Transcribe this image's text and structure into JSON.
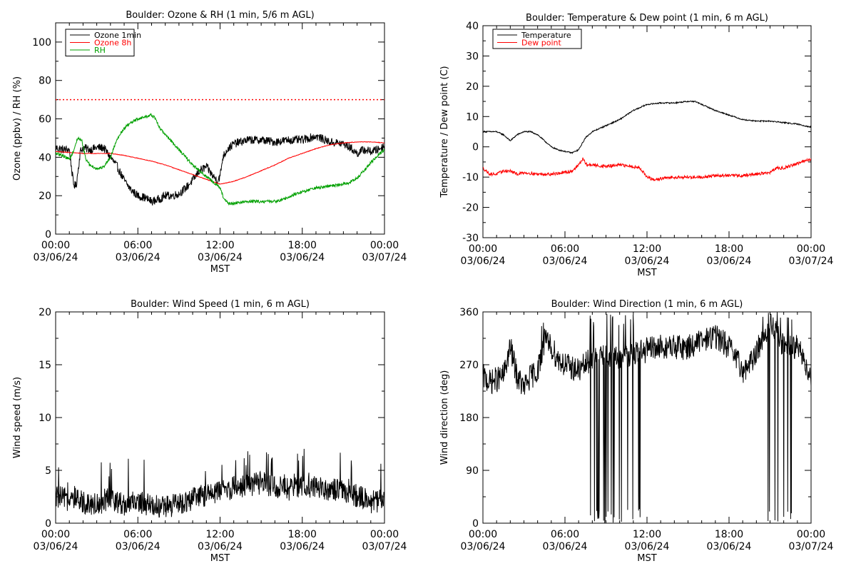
{
  "chart_data": [
    {
      "type": "line",
      "title": "Boulder: Ozone & RH (1 min, 5/6 m AGL)",
      "ylabel": "Ozone (ppbv) / RH (%)",
      "xlabel": "MST",
      "xlim": [
        0,
        24
      ],
      "ylim": [
        0,
        110
      ],
      "yticks": [
        0,
        20,
        40,
        60,
        80,
        100
      ],
      "xticks": [
        {
          "time": "00:00",
          "date": "03/06/24"
        },
        {
          "time": "06:00",
          "date": "03/06/24"
        },
        {
          "time": "12:00",
          "date": "03/06/24"
        },
        {
          "time": "18:00",
          "date": "03/06/24"
        },
        {
          "time": "00:00",
          "date": "03/07/24"
        }
      ],
      "legend": {
        "placement": "top-left",
        "entries": [
          {
            "label": "Ozone 1min",
            "color": "#000000"
          },
          {
            "label": "Ozone 8h",
            "color": "#ff0000"
          },
          {
            "label": "RH",
            "color": "#00a000"
          }
        ]
      },
      "reference_line": {
        "y": 70,
        "color": "#ff0000",
        "style": "dotted"
      },
      "series": [
        {
          "name": "Ozone 1min",
          "color": "#000000",
          "noise": 2.2,
          "x": [
            0,
            0.5,
            1,
            1.3,
            1.5,
            1.8,
            2,
            2.5,
            3,
            3.5,
            4,
            4.5,
            5,
            5.5,
            6,
            6.5,
            7,
            7.5,
            8,
            8.5,
            9,
            9.5,
            10,
            10.5,
            11,
            11.5,
            11.8,
            12,
            12.2,
            12.5,
            13,
            13.5,
            14,
            15,
            16,
            17,
            18,
            18.5,
            19,
            20,
            21,
            21.5,
            22,
            22.5,
            23,
            23.5,
            24
          ],
          "y": [
            45,
            44,
            44,
            26,
            25,
            43,
            45,
            44,
            45,
            45,
            40,
            35,
            28,
            23,
            20,
            19,
            17,
            18,
            20,
            20,
            21,
            24,
            28,
            33,
            35,
            30,
            28,
            30,
            40,
            44,
            47,
            48,
            49,
            49,
            48,
            49,
            49,
            50,
            51,
            48,
            47,
            45,
            42,
            44,
            43,
            44,
            46
          ]
        },
        {
          "name": "Ozone 8h",
          "color": "#ff0000",
          "noise": 0.15,
          "x": [
            0,
            1,
            2,
            3,
            4,
            5,
            6,
            7,
            8,
            9,
            10,
            11,
            12,
            13,
            14,
            15,
            16,
            17,
            18,
            19,
            20,
            21,
            22,
            23,
            24
          ],
          "y": [
            43,
            42.5,
            42,
            42,
            42,
            41,
            39.5,
            38,
            36,
            33.5,
            31,
            28.5,
            26,
            27.5,
            30,
            33,
            36,
            39.5,
            42,
            44.5,
            46.5,
            47.5,
            48,
            48,
            47.5
          ]
        },
        {
          "name": "RH",
          "color": "#00a000",
          "noise": 0.8,
          "x": [
            0,
            0.5,
            1,
            1.3,
            1.5,
            1.7,
            1.9,
            2.2,
            2.5,
            3,
            3.5,
            4,
            4.5,
            5,
            5.5,
            6,
            6.5,
            7,
            7.3,
            7.6,
            8,
            8.5,
            9,
            9.5,
            10,
            10.5,
            11,
            11.5,
            12,
            12.3,
            12.6,
            13,
            14,
            15,
            16,
            17,
            17.5,
            18,
            19,
            20,
            21,
            21.5,
            22,
            22.5,
            23,
            23.5,
            24
          ],
          "y": [
            42,
            41,
            39,
            43,
            48,
            50,
            49,
            39,
            36,
            34,
            35,
            40,
            50,
            55,
            58,
            60,
            61,
            62,
            60,
            55,
            52,
            48,
            44,
            40,
            36,
            33,
            30,
            27,
            24,
            18,
            16,
            16,
            17,
            17,
            17,
            19,
            21,
            22,
            24,
            25,
            26,
            27,
            29,
            33,
            37,
            41,
            44
          ]
        }
      ]
    },
    {
      "type": "line",
      "title": "Boulder: Temperature & Dew point (1 min, 6 m AGL)",
      "ylabel": "Temperature / Dew point (C)",
      "xlabel": "MST",
      "xlim": [
        0,
        24
      ],
      "ylim": [
        -30,
        40
      ],
      "yticks": [
        -30,
        -20,
        -10,
        0,
        10,
        20,
        30,
        40
      ],
      "xticks": [
        {
          "time": "00:00",
          "date": "03/06/24"
        },
        {
          "time": "06:00",
          "date": "03/06/24"
        },
        {
          "time": "12:00",
          "date": "03/06/24"
        },
        {
          "time": "18:00",
          "date": "03/06/24"
        },
        {
          "time": "00:00",
          "date": "03/07/24"
        }
      ],
      "legend": {
        "placement": "top-left",
        "entries": [
          {
            "label": "Temperature",
            "color": "#000000"
          },
          {
            "label": "Dew point",
            "color": "#ff0000"
          }
        ]
      },
      "series": [
        {
          "name": "Temperature",
          "color": "#000000",
          "noise": 0.2,
          "x": [
            0,
            0.5,
            1,
            1.5,
            2,
            2.5,
            3,
            3.5,
            4,
            4.5,
            5,
            5.5,
            6,
            6.5,
            7,
            7.5,
            8,
            9,
            10,
            11,
            12,
            13,
            14,
            15,
            15.5,
            16,
            17,
            18,
            19,
            20,
            21,
            22,
            23,
            23.5,
            24
          ],
          "y": [
            5,
            5,
            5,
            4,
            2,
            4,
            5,
            5,
            4,
            2,
            0,
            -1,
            -1.5,
            -2,
            -1,
            3,
            5,
            7,
            9,
            12,
            14,
            14.5,
            14.5,
            15,
            15,
            14,
            12,
            10.5,
            9,
            8.5,
            8.5,
            8,
            7.5,
            7,
            6.5
          ]
        },
        {
          "name": "Dew point",
          "color": "#ff0000",
          "noise": 0.5,
          "x": [
            0,
            0.5,
            1,
            1.5,
            2,
            2.5,
            3,
            4,
            5,
            6,
            6.5,
            7,
            7.3,
            7.6,
            8,
            9,
            10,
            11,
            11.5,
            12,
            12.5,
            13,
            14,
            15,
            16,
            17,
            18,
            19,
            20,
            21,
            21.5,
            22,
            23,
            24
          ],
          "y": [
            -7,
            -9,
            -9,
            -8,
            -8,
            -9,
            -8.5,
            -9,
            -9,
            -8.5,
            -8,
            -6,
            -4,
            -6,
            -6,
            -6.5,
            -6,
            -6.5,
            -7,
            -10,
            -11,
            -10.5,
            -10,
            -10,
            -10,
            -9.5,
            -9.5,
            -9.5,
            -9,
            -8.5,
            -7,
            -7,
            -5.5,
            -4
          ]
        }
      ]
    },
    {
      "type": "line",
      "title": "Boulder: Wind Speed (1 min, 6 m AGL)",
      "ylabel": "Wind speed (m/s)",
      "xlabel": "MST",
      "xlim": [
        0,
        24
      ],
      "ylim": [
        0,
        20
      ],
      "yticks": [
        0,
        5,
        10,
        15,
        20
      ],
      "xticks": [
        {
          "time": "00:00",
          "date": "03/06/24"
        },
        {
          "time": "06:00",
          "date": "03/06/24"
        },
        {
          "time": "12:00",
          "date": "03/06/24"
        },
        {
          "time": "18:00",
          "date": "03/06/24"
        },
        {
          "time": "00:00",
          "date": "03/07/24"
        }
      ],
      "series": [
        {
          "name": "Wind speed",
          "color": "#000000",
          "noise": 1.1,
          "x": [
            0,
            1,
            2,
            3,
            4,
            5,
            6,
            7,
            8,
            9,
            10,
            11,
            12,
            13,
            14,
            15,
            16,
            17,
            18,
            19,
            20,
            21,
            22,
            23,
            24
          ],
          "y": [
            2.5,
            2.2,
            2.0,
            1.8,
            2.3,
            1.8,
            2.0,
            1.7,
            1.5,
            1.8,
            2.3,
            2.7,
            3.0,
            3.4,
            3.6,
            3.8,
            3.5,
            3.2,
            3.4,
            3.5,
            3.2,
            3.0,
            2.6,
            2.0,
            2.2
          ]
        }
      ]
    },
    {
      "type": "line",
      "title": "Boulder: Wind Direction (1 min, 6 m AGL)",
      "ylabel": "Wind direction (deg)",
      "xlabel": "MST",
      "xlim": [
        0,
        24
      ],
      "ylim": [
        0,
        360
      ],
      "yticks": [
        0,
        90,
        180,
        270,
        360
      ],
      "xticks": [
        {
          "time": "00:00",
          "date": "03/06/24"
        },
        {
          "time": "06:00",
          "date": "03/06/24"
        },
        {
          "time": "12:00",
          "date": "03/06/24"
        },
        {
          "time": "18:00",
          "date": "03/06/24"
        },
        {
          "time": "00:00",
          "date": "03/07/24"
        }
      ],
      "series": [
        {
          "name": "Wind direction",
          "color": "#000000",
          "noise": 22,
          "x": [
            0,
            0.5,
            1,
            1.5,
            2,
            2.5,
            3,
            3.5,
            4,
            4.5,
            5,
            5.5,
            6,
            6.5,
            7,
            7.5,
            8,
            9,
            10,
            11,
            12,
            13,
            14,
            15,
            16,
            17,
            17.5,
            18,
            19,
            19.5,
            20,
            20.5,
            21,
            21.5,
            22,
            23,
            23.5,
            24
          ],
          "y": [
            250,
            240,
            245,
            250,
            300,
            250,
            230,
            250,
            260,
            310,
            300,
            280,
            270,
            265,
            260,
            270,
            280,
            285,
            280,
            290,
            295,
            300,
            300,
            300,
            310,
            320,
            310,
            300,
            260,
            270,
            290,
            320,
            340,
            320,
            300,
            300,
            280,
            250
          ]
        }
      ]
    }
  ]
}
